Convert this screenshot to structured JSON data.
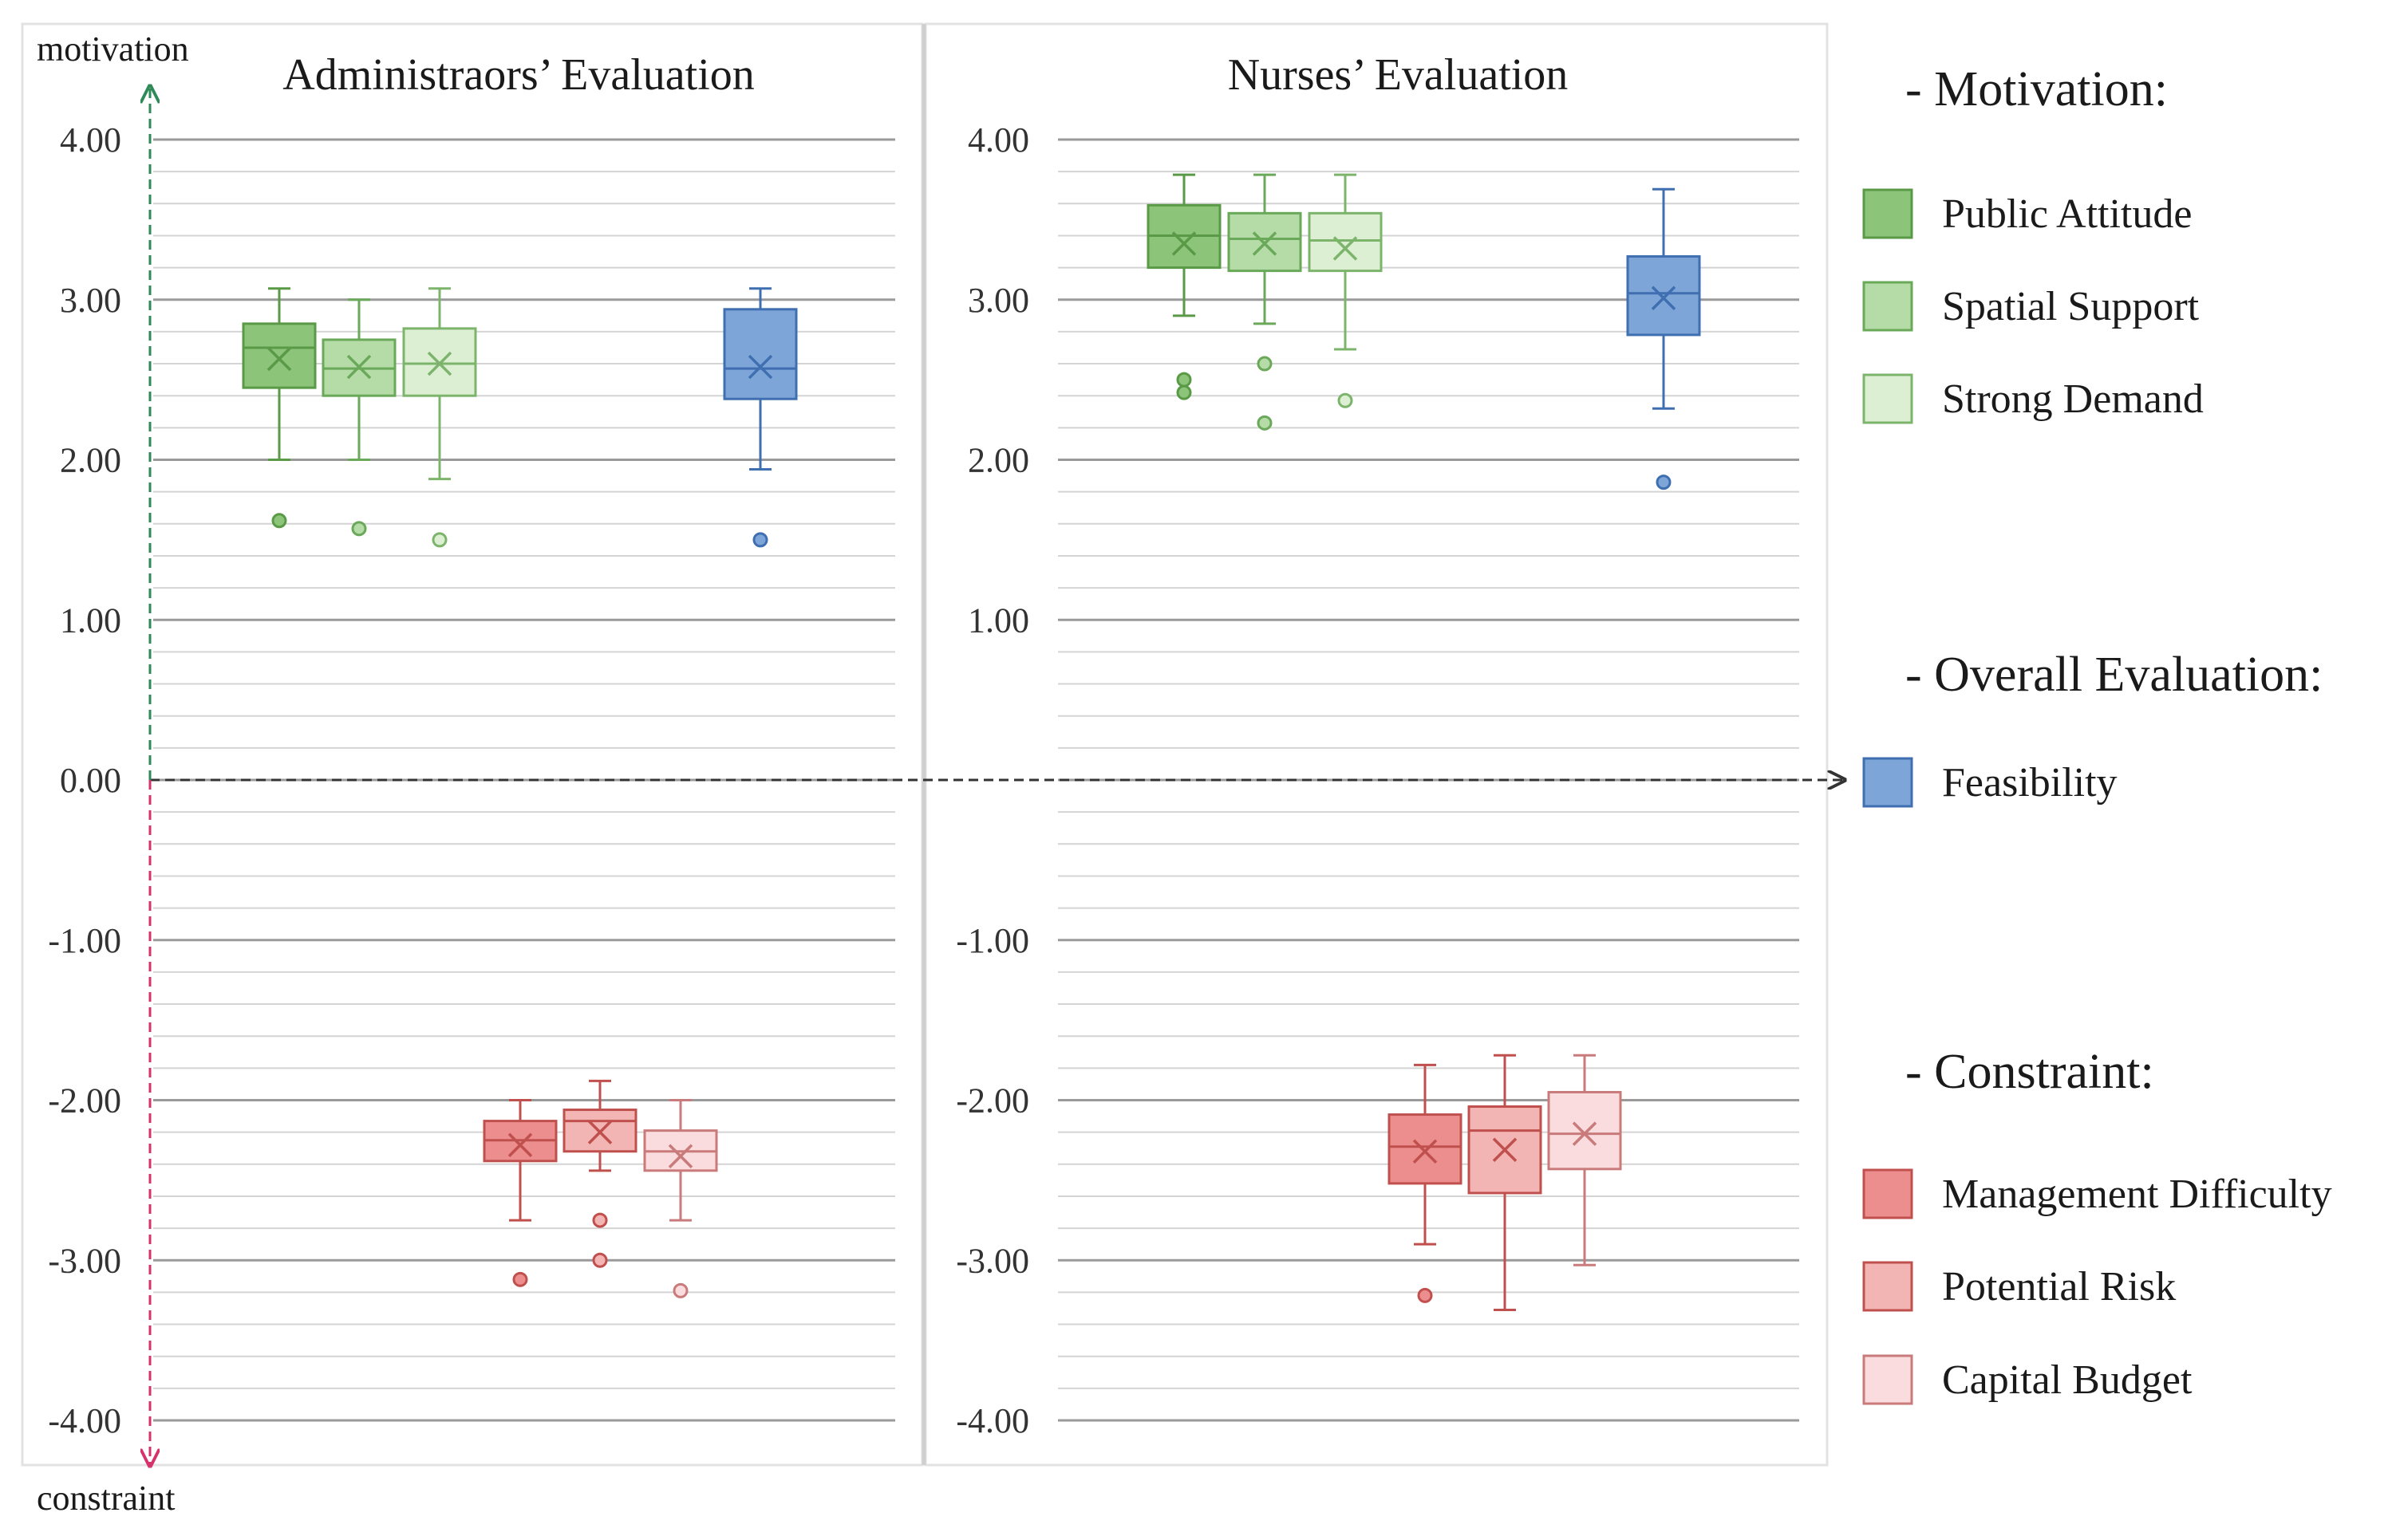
{
  "axis_labels": {
    "top": "motivation",
    "bottom": "constraint"
  },
  "legend": {
    "motivation_header": "- Motivation:",
    "overall_header": "- Overall Evaluation:",
    "constraint_header": "- Constraint:",
    "items": [
      {
        "label": "Public Attitude",
        "color": "#8cc47a",
        "stroke": "#5a9a47"
      },
      {
        "label": "Spatial Support",
        "color": "#b5dba6",
        "stroke": "#6aa85a"
      },
      {
        "label": "Strong Demand",
        "color": "#dcefd3",
        "stroke": "#7cb46c"
      },
      {
        "label": "Feasibility",
        "color": "#7ea5d8",
        "stroke": "#3f6fb0"
      },
      {
        "label": "Management Difficulty",
        "color": "#ec8e8e",
        "stroke": "#c0504d"
      },
      {
        "label": "Potential Risk",
        "color": "#f3b4b4",
        "stroke": "#c0504d"
      },
      {
        "label": "Capital Budget",
        "color": "#fadcdf",
        "stroke": "#c97a7a"
      }
    ]
  },
  "chart_data": [
    {
      "type": "box",
      "title": "Administraors’ Evaluation",
      "ylim": [
        -4,
        4
      ],
      "yticks": [
        "4.00",
        "3.00",
        "2.00",
        "1.00",
        "0.00",
        "-1.00",
        "-2.00",
        "-3.00",
        "-4.00"
      ],
      "ytick_values": [
        4,
        3,
        2,
        1,
        0,
        -1,
        -2,
        -3,
        -4
      ],
      "grid": true,
      "series": [
        {
          "name": "Public Attitude",
          "min": 2.0,
          "q1": 2.45,
          "median": 2.7,
          "q3": 2.85,
          "max": 3.07,
          "mean": 2.63,
          "outliers": [
            1.62
          ]
        },
        {
          "name": "Spatial Support",
          "min": 2.0,
          "q1": 2.4,
          "median": 2.57,
          "q3": 2.75,
          "max": 3.0,
          "mean": 2.58,
          "outliers": [
            1.57
          ]
        },
        {
          "name": "Strong Demand",
          "min": 1.88,
          "q1": 2.4,
          "median": 2.6,
          "q3": 2.82,
          "max": 3.07,
          "mean": 2.6,
          "outliers": [
            1.5
          ]
        },
        {
          "name": "Management Difficulty",
          "min": -2.75,
          "q1": -2.38,
          "median": -2.25,
          "q3": -2.13,
          "max": -2.0,
          "mean": -2.28,
          "outliers": [
            -3.12
          ]
        },
        {
          "name": "Potential Risk",
          "min": -2.44,
          "q1": -2.32,
          "median": -2.13,
          "q3": -2.06,
          "max": -1.88,
          "mean": -2.2,
          "outliers": [
            -2.75,
            -3.0
          ]
        },
        {
          "name": "Capital Budget",
          "min": -2.75,
          "q1": -2.44,
          "median": -2.32,
          "q3": -2.19,
          "max": -2.0,
          "mean": -2.35,
          "outliers": [
            -3.19
          ]
        },
        {
          "name": "Feasibility",
          "min": 1.94,
          "q1": 2.38,
          "median": 2.57,
          "q3": 2.94,
          "max": 3.07,
          "mean": 2.58,
          "outliers": [
            1.5
          ]
        }
      ]
    },
    {
      "type": "box",
      "title": "Nurses’ Evaluation",
      "ylim": [
        -4,
        4
      ],
      "yticks": [
        "4.00",
        "3.00",
        "2.00",
        "1.00",
        "-1.00",
        "-2.00",
        "-3.00",
        "-4.00"
      ],
      "ytick_values": [
        4,
        3,
        2,
        1,
        -1,
        -2,
        -3,
        -4
      ],
      "grid": true,
      "series": [
        {
          "name": "Public Attitude",
          "min": 2.9,
          "q1": 3.2,
          "median": 3.4,
          "q3": 3.59,
          "max": 3.78,
          "mean": 3.35,
          "outliers": [
            2.5,
            2.42
          ]
        },
        {
          "name": "Spatial Support",
          "min": 2.85,
          "q1": 3.18,
          "median": 3.38,
          "q3": 3.54,
          "max": 3.78,
          "mean": 3.35,
          "outliers": [
            2.6,
            2.23
          ]
        },
        {
          "name": "Strong Demand",
          "min": 2.69,
          "q1": 3.18,
          "median": 3.37,
          "q3": 3.54,
          "max": 3.78,
          "mean": 3.32,
          "outliers": [
            2.37
          ]
        },
        {
          "name": "Management Difficulty",
          "min": -2.9,
          "q1": -2.52,
          "median": -2.29,
          "q3": -2.09,
          "max": -1.78,
          "mean": -2.32,
          "outliers": [
            -3.22
          ]
        },
        {
          "name": "Potential Risk",
          "min": -3.31,
          "q1": -2.58,
          "median": -2.19,
          "q3": -2.04,
          "max": -1.72,
          "mean": -2.31,
          "outliers": []
        },
        {
          "name": "Capital Budget",
          "min": -3.03,
          "q1": -2.43,
          "median": -2.21,
          "q3": -1.95,
          "max": -1.72,
          "mean": -2.21,
          "outliers": []
        },
        {
          "name": "Feasibility",
          "min": 2.32,
          "q1": 2.78,
          "median": 3.04,
          "q3": 3.27,
          "max": 3.69,
          "mean": 3.01,
          "outliers": [
            1.86
          ]
        }
      ]
    }
  ]
}
